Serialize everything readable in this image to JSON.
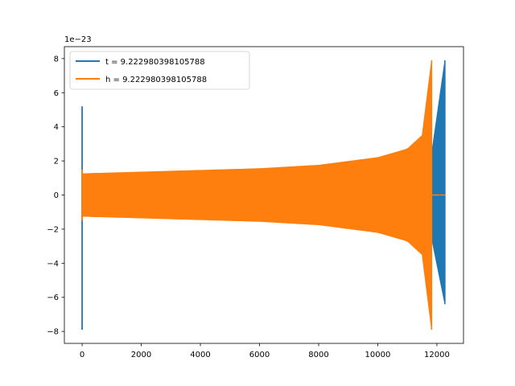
{
  "chart_data": {
    "type": "line",
    "title": "",
    "xlabel": "",
    "ylabel": "",
    "y_offset_label": "1e−23",
    "xlim": [
      -600,
      12900
    ],
    "ylim": [
      -8.7,
      8.7
    ],
    "x_ticks": [
      0,
      2000,
      4000,
      6000,
      8000,
      10000,
      12000
    ],
    "y_ticks": [
      -8,
      -6,
      -4,
      -2,
      0,
      2,
      4,
      6,
      8
    ],
    "grid": false,
    "legend_placement": "top-left",
    "series": [
      {
        "name": "t = 9.222980398105788",
        "color": "#1f77b4",
        "spike_at": 0,
        "spike_range": [
          -7.9,
          5.2
        ],
        "band_start_x": 30,
        "band_start_amp": 1.25,
        "envelope_points": [
          [
            3000,
            1.35
          ],
          [
            6000,
            1.5
          ],
          [
            9000,
            1.75
          ],
          [
            10500,
            2.0
          ],
          [
            11500,
            2.6
          ],
          [
            11850,
            2.8
          ]
        ],
        "end_x": 12270,
        "end_peak": [
          -6.4,
          7.9
        ]
      },
      {
        "name": "h = 9.222980398105788",
        "color": "#ff7f0e",
        "spike_at": 0,
        "spike_range": [
          -1.5,
          1.5
        ],
        "band_start_x": 30,
        "band_start_amp": 1.25,
        "envelope_points": [
          [
            3000,
            1.4
          ],
          [
            6000,
            1.55
          ],
          [
            8000,
            1.75
          ],
          [
            10000,
            2.2
          ],
          [
            11000,
            2.7
          ],
          [
            11500,
            3.5
          ]
        ],
        "end_x": 11820,
        "end_peak": [
          -7.9,
          7.9
        ],
        "flat_after_end_to": 12280
      }
    ]
  }
}
